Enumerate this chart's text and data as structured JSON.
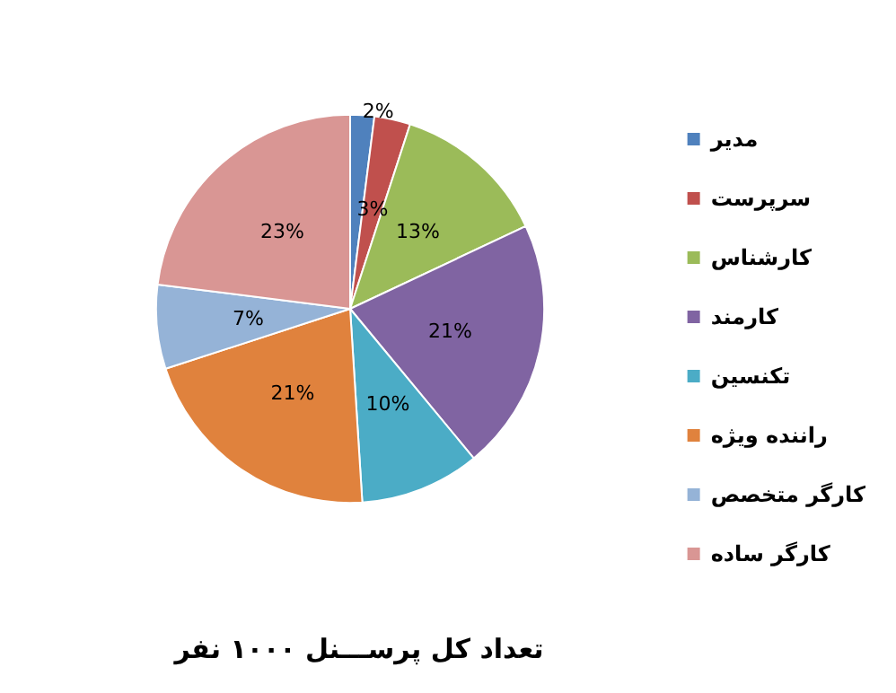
{
  "chart_data": {
    "type": "pie",
    "title": "تعداد کل پرســـنل ۱۰۰۰ نفر",
    "categories": [
      "مدیر",
      "سرپرست",
      "کارشناس",
      "کارمند",
      "تکنسین",
      "راننده ویژه",
      "کارگر متخصص",
      "کارگر ساده"
    ],
    "values": [
      2,
      3,
      13,
      21,
      10,
      21,
      7,
      23
    ],
    "colors": [
      "#4f81bd",
      "#c0504d",
      "#9bbb59",
      "#8064a2",
      "#4bacc6",
      "#e0823d",
      "#95b3d7",
      "#d99694"
    ],
    "value_labels": [
      "2%",
      "3%",
      "13%",
      "21%",
      "10%",
      "21%",
      "7%",
      "23%"
    ],
    "legend": "right"
  }
}
